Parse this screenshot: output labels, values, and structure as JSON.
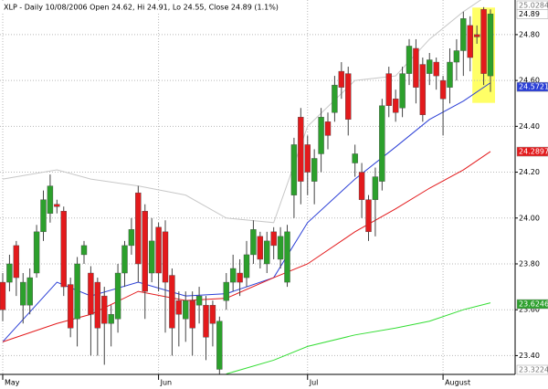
{
  "chart_data": {
    "type": "candlestick",
    "title": "XLP - Daily 10/08/2006 Open 24.62, Hi 24.91, Lo 24.55, Close 24.89 (1.1%)",
    "categories": [
      "May",
      null,
      null,
      null,
      null,
      null,
      null,
      null,
      null,
      null,
      null,
      null,
      null,
      null,
      null,
      null,
      null,
      null,
      null,
      null,
      null,
      null,
      null,
      "Jun",
      null,
      null,
      null,
      null,
      null,
      null,
      null,
      null,
      null,
      null,
      null,
      null,
      null,
      null,
      null,
      null,
      null,
      null,
      null,
      null,
      null,
      "Jul",
      null,
      null,
      null,
      null,
      null,
      null,
      null,
      null,
      null,
      null,
      null,
      null,
      null,
      null,
      null,
      null,
      null,
      null,
      null,
      "August",
      null,
      null,
      null,
      null,
      null,
      null,
      null
    ],
    "open": [
      23.72,
      23.72,
      23.88,
      23.62,
      23.62,
      23.76,
      23.94,
      24.02,
      24.06,
      24.03,
      23.71,
      23.56,
      23.84,
      23.76,
      23.72,
      23.66,
      23.54,
      23.56,
      23.76,
      23.88,
      24.11,
      24.03,
      23.76,
      23.96,
      23.94,
      23.75,
      23.64,
      23.56,
      23.64,
      23.62,
      23.62,
      23.62,
      23.34,
      23.64,
      23.72,
      23.76,
      23.74,
      23.84,
      23.92,
      23.8,
      23.94,
      23.82,
      23.72,
      24.1,
      24.44,
      24.32,
      24.16,
      24.28,
      24.42,
      24.46,
      24.64,
      24.63,
      24.24,
      24.2,
      24.08,
      24.08,
      24.16,
      24.63,
      24.52,
      24.48,
      24.63,
      24.74,
      24.67,
      24.63,
      24.68,
      24.6,
      24.57,
      24.68,
      24.73,
      24.84,
      24.8,
      24.91,
      24.62
    ],
    "high": [
      23.76,
      23.84,
      23.9,
      23.76,
      23.78,
      23.97,
      24.12,
      24.19,
      24.08,
      24.05,
      23.74,
      23.83,
      23.9,
      23.79,
      23.74,
      23.7,
      23.62,
      23.8,
      23.9,
      24.0,
      24.14,
      24.06,
      24.0,
      23.98,
      23.99,
      23.78,
      23.68,
      23.68,
      23.68,
      23.7,
      23.66,
      23.64,
      23.57,
      23.76,
      23.84,
      23.82,
      23.9,
      23.99,
      23.94,
      23.94,
      23.96,
      23.96,
      23.97,
      24.35,
      24.48,
      24.36,
      24.3,
      24.48,
      24.46,
      24.62,
      24.68,
      24.66,
      24.32,
      24.24,
      24.1,
      24.22,
      24.52,
      24.66,
      24.56,
      24.66,
      24.78,
      24.78,
      24.7,
      24.72,
      24.7,
      24.62,
      24.74,
      24.78,
      24.9,
      24.88,
      24.84,
      24.92,
      24.91
    ],
    "low": [
      23.55,
      23.68,
      23.66,
      23.54,
      23.58,
      23.74,
      23.9,
      23.98,
      24.02,
      23.66,
      23.48,
      23.44,
      23.8,
      23.4,
      23.4,
      23.36,
      23.44,
      23.5,
      23.7,
      23.84,
      23.72,
      23.56,
      23.72,
      23.68,
      23.5,
      23.4,
      23.44,
      23.46,
      23.4,
      23.54,
      23.38,
      23.44,
      23.32,
      23.6,
      23.68,
      23.66,
      23.7,
      23.8,
      23.78,
      23.76,
      23.82,
      23.78,
      23.7,
      24.0,
      24.06,
      24.1,
      24.06,
      24.2,
      24.3,
      24.42,
      24.52,
      24.36,
      24.18,
      24.0,
      23.9,
      23.92,
      24.12,
      24.44,
      24.42,
      24.44,
      24.58,
      24.5,
      24.42,
      24.58,
      24.56,
      24.36,
      24.5,
      24.6,
      24.62,
      24.64,
      24.76,
      24.58,
      24.55
    ],
    "close": [
      23.6,
      23.8,
      23.74,
      23.72,
      23.74,
      23.94,
      24.08,
      24.14,
      24.05,
      23.7,
      23.52,
      23.8,
      23.88,
      23.58,
      23.52,
      23.54,
      23.58,
      23.76,
      23.88,
      23.95,
      23.8,
      23.68,
      23.9,
      23.76,
      23.72,
      23.52,
      23.58,
      23.64,
      23.52,
      23.66,
      23.48,
      23.54,
      23.55,
      23.72,
      23.78,
      23.72,
      23.84,
      23.95,
      23.82,
      23.9,
      23.88,
      23.92,
      23.94,
      24.32,
      24.16,
      24.2,
      24.26,
      24.44,
      24.36,
      24.58,
      24.57,
      24.43,
      24.28,
      24.08,
      23.94,
      24.18,
      24.49,
      24.49,
      24.46,
      24.63,
      24.75,
      24.57,
      24.45,
      24.69,
      24.62,
      24.52,
      24.68,
      24.73,
      24.87,
      24.7,
      24.79,
      24.63,
      24.89
    ],
    "up_color": "#2ca02c",
    "down_color": "#e31a1c",
    "lines": [
      {
        "color": "#c8c8c8",
        "x": [
          0,
          8,
          13,
          20,
          27,
          33,
          40,
          45,
          52,
          58,
          63,
          68,
          72
        ],
        "values": [
          24.17,
          24.21,
          24.17,
          24.14,
          24.1,
          24.0,
          23.98,
          24.4,
          24.6,
          24.62,
          24.78,
          24.9,
          24.98
        ]
      },
      {
        "color": "#2b3fd6",
        "x": [
          0,
          8,
          13,
          20,
          27,
          33,
          40,
          45,
          52,
          58,
          63,
          68,
          72
        ],
        "values": [
          23.46,
          23.72,
          23.66,
          23.72,
          23.66,
          23.67,
          23.74,
          23.98,
          24.17,
          24.31,
          24.43,
          24.51,
          24.59
        ]
      },
      {
        "color": "#e31a1c",
        "x": [
          0,
          8,
          13,
          20,
          27,
          33,
          40,
          45,
          52,
          58,
          63,
          68,
          72
        ],
        "values": [
          23.46,
          23.54,
          23.58,
          23.68,
          23.64,
          23.65,
          23.74,
          23.8,
          23.94,
          24.04,
          24.13,
          24.21,
          24.29
        ]
      },
      {
        "color": "#33dd33",
        "x": [
          33,
          40,
          45,
          52,
          58,
          63,
          68,
          72
        ],
        "values": [
          23.32,
          23.38,
          23.44,
          23.49,
          23.52,
          23.55,
          23.6,
          23.63
        ]
      }
    ],
    "price_labels": [
      {
        "value": 25.0284,
        "bg": "#ffffff",
        "color": "#777777"
      },
      {
        "value": 24.89,
        "bg": "#ffffff",
        "color": "#000000"
      },
      {
        "value": 24.5721,
        "bg": "#2b3fd6",
        "color": "#ffffff"
      },
      {
        "value": 24.2897,
        "bg": "#e31a1c",
        "color": "#ffffff"
      },
      {
        "value": 23.6246,
        "bg": "#2ca02c",
        "color": "#ffffff"
      },
      {
        "value": 23.3224,
        "bg": "#ffffff",
        "color": "#777777"
      }
    ],
    "ylim": [
      23.318,
      24.951
    ],
    "yticks": [
      {
        "value": 24.8,
        "label": "24.80"
      },
      {
        "value": 24.6,
        "label": "24.60"
      },
      {
        "value": 24.4,
        "label": "24.40"
      },
      {
        "value": 24.2,
        "label": "24.20"
      },
      {
        "value": 24.0,
        "label": "24.00"
      },
      {
        "value": 23.8,
        "label": "23.80"
      },
      {
        "value": 23.6,
        "label": "23.60"
      },
      {
        "value": 23.4,
        "label": "23.40"
      }
    ],
    "grid": true,
    "highlight_color": "#ffff66"
  }
}
